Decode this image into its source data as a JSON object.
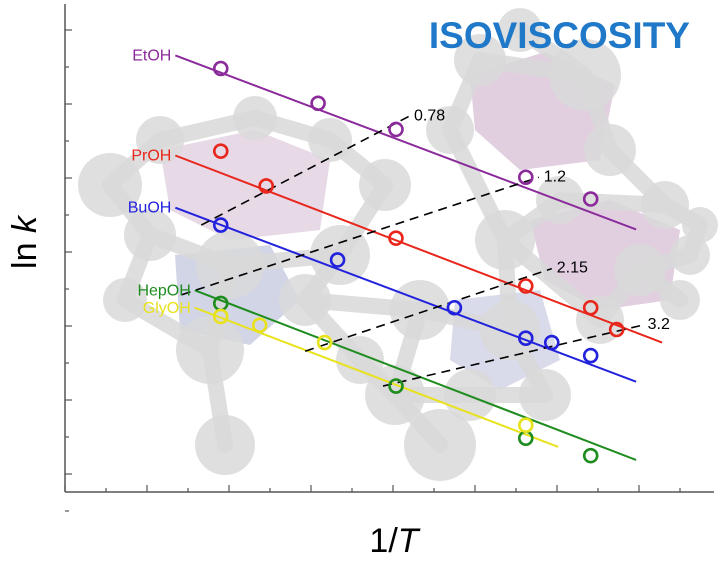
{
  "colors": {
    "title": "#1f78c8",
    "isoline": "#000000",
    "axes": "#555555",
    "molecule": "#d9d9d9",
    "molecule_pink": "#d7bfd6",
    "molecule_blue": "#bfc3dc"
  },
  "chart_data": {
    "type": "scatter",
    "title": "ISOVISCOSITY",
    "xlabel": "1/T",
    "ylabel": "ln k",
    "xlim": [
      0,
      100
    ],
    "ylim": [
      0,
      100
    ],
    "xtick_labels": [],
    "ytick_labels": [],
    "grid": false,
    "legend": "labels at left end of each fit line",
    "series": [
      {
        "name": "EtOH",
        "color": "#8b2a9b",
        "fit": {
          "x": [
            17,
            88
          ],
          "y": [
            93,
            53
          ]
        },
        "x": [
          24,
          39,
          51,
          71,
          81
        ],
        "y": [
          90,
          82,
          76,
          65,
          60
        ]
      },
      {
        "name": "PrOH",
        "color": "#e8261b",
        "fit": {
          "x": [
            17,
            92
          ],
          "y": [
            70,
            27
          ]
        },
        "x": [
          24,
          31,
          51,
          71,
          81,
          85
        ],
        "y": [
          71,
          63,
          51,
          40,
          35,
          30
        ]
      },
      {
        "name": "BuOH",
        "color": "#2222dd",
        "fit": {
          "x": [
            17,
            88
          ],
          "y": [
            58,
            18
          ]
        },
        "x": [
          24,
          42,
          60,
          71,
          75,
          81
        ],
        "y": [
          54,
          46,
          35,
          28,
          27,
          24
        ]
      },
      {
        "name": "HepOH",
        "color": "#1e8c1e",
        "fit": {
          "x": [
            20,
            88
          ],
          "y": [
            39,
            0
          ]
        },
        "x": [
          24,
          51,
          71,
          81
        ],
        "y": [
          36,
          17,
          5,
          1
        ]
      },
      {
        "name": "GlyOH",
        "color": "#e8e21c",
        "fit": {
          "x": [
            20,
            76
          ],
          "y": [
            35,
            3
          ]
        },
        "x": [
          24,
          30,
          40,
          71
        ],
        "y": [
          33,
          31,
          27,
          8
        ]
      }
    ],
    "isoviscosity_lines": [
      {
        "label": "0.78",
        "x": [
          21,
          53
        ],
        "y": [
          54,
          79
        ]
      },
      {
        "label": "1.2",
        "x": [
          18,
          73
        ],
        "y": [
          38,
          65
        ]
      },
      {
        "label": "2.15",
        "x": [
          37,
          75
        ],
        "y": [
          25,
          44
        ]
      },
      {
        "label": "3.2",
        "x": [
          49,
          89
        ],
        "y": [
          17,
          31
        ]
      }
    ]
  }
}
